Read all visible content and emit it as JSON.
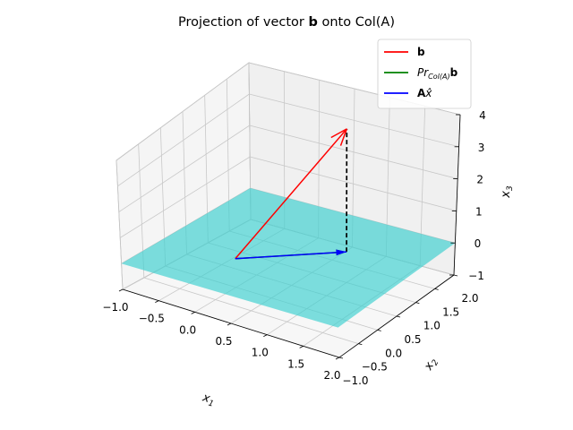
{
  "chart_data": {
    "type": "3d-vector-plot",
    "title_prefix": "Projection of vector ",
    "title_bold": "b",
    "title_suffix": " onto Col(A)",
    "xlabel": "x",
    "xlabel_sub": "1",
    "ylabel": "x",
    "ylabel_sub": "2",
    "zlabel": "x",
    "zlabel_sub": "3",
    "xlim": [
      -1,
      2
    ],
    "ylim": [
      -1,
      2
    ],
    "zlim": [
      -1,
      4
    ],
    "xticks": [
      "−1.0",
      "−0.5",
      "0.0",
      "0.5",
      "1.0",
      "1.5",
      "2.0"
    ],
    "yticks": [
      "−1.0",
      "−0.5",
      "0.0",
      "0.5",
      "1.0",
      "1.5",
      "2.0"
    ],
    "zticks": [
      "−1",
      "0",
      "1",
      "2",
      "3",
      "4"
    ],
    "grid": true,
    "legend_position": "top-right",
    "plane": {
      "label": "Col(A)",
      "z": 0,
      "color": "#40d0d0"
    },
    "vectors": [
      {
        "legend_bold": "b",
        "legend_rest": "",
        "color": "#ff0000",
        "from": [
          0,
          0,
          0
        ],
        "to": [
          1,
          1,
          4
        ]
      },
      {
        "legend_rest": "Pr",
        "legend_sub": "Col(A)",
        "legend_bold": "b",
        "color": "#008000",
        "from": [
          0,
          0,
          0
        ],
        "to": [
          1,
          1,
          0
        ]
      },
      {
        "legend_bold": "A",
        "legend_rest": "x̂",
        "color": "#0000ff",
        "from": [
          0,
          0,
          0
        ],
        "to": [
          1,
          1,
          0
        ]
      }
    ],
    "residual": {
      "from": [
        1,
        1,
        0
      ],
      "to": [
        1,
        1,
        4
      ],
      "style": "dashed",
      "color": "#000000"
    }
  }
}
